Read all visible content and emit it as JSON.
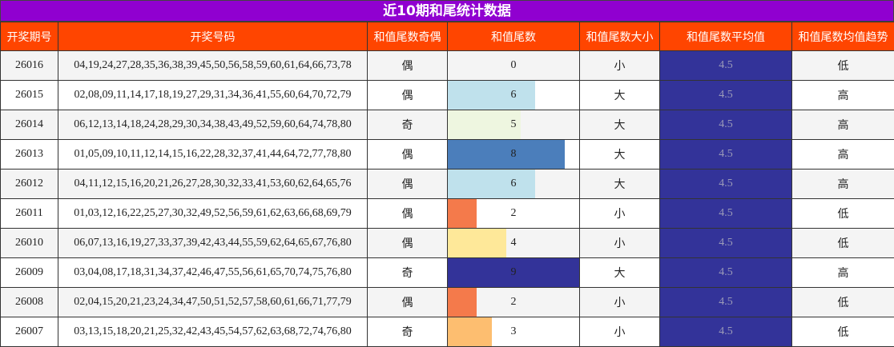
{
  "title": "近10期和尾统计数据",
  "table": {
    "headers": [
      "开奖期号",
      "开奖号码",
      "和值尾数奇偶",
      "和值尾数",
      "和值尾数大小",
      "和值尾数平均值",
      "和值尾数均值趋势"
    ],
    "rows": [
      [
        "26016",
        "04,19,24,27,28,35,36,38,39,45,50,56,58,59,60,61,64,66,73,78",
        "偶",
        0,
        "小",
        4.5,
        "低"
      ],
      [
        "26015",
        "02,08,09,11,14,17,18,19,27,29,31,34,36,41,55,60,64,70,72,79",
        "偶",
        6,
        "大",
        4.5,
        "高"
      ],
      [
        "26014",
        "06,12,13,14,18,24,28,29,30,34,38,43,49,52,59,60,64,74,78,80",
        "奇",
        5,
        "大",
        4.5,
        "高"
      ],
      [
        "26013",
        "01,05,09,10,11,12,14,15,16,22,28,32,37,41,44,64,72,77,78,80",
        "偶",
        8,
        "大",
        4.5,
        "高"
      ],
      [
        "26012",
        "04,11,12,15,16,20,21,26,27,28,30,32,33,41,53,60,62,64,65,76",
        "偶",
        6,
        "大",
        4.5,
        "高"
      ],
      [
        "26011",
        "01,03,12,16,22,25,27,30,32,49,52,56,59,61,62,63,66,68,69,79",
        "偶",
        2,
        "小",
        4.5,
        "低"
      ],
      [
        "26010",
        "06,07,13,16,19,27,33,37,39,42,43,44,55,59,62,64,65,67,76,80",
        "偶",
        4,
        "小",
        4.5,
        "低"
      ],
      [
        "26009",
        "03,04,08,17,18,31,34,37,42,46,47,55,56,61,65,70,74,75,76,80",
        "奇",
        9,
        "大",
        4.5,
        "高"
      ],
      [
        "26008",
        "02,04,15,20,21,23,24,34,47,50,51,52,57,58,60,61,66,71,77,79",
        "偶",
        2,
        "小",
        4.5,
        "低"
      ],
      [
        "26007",
        "03,13,15,18,20,21,25,32,42,43,45,54,57,62,63,68,72,74,76,80",
        "奇",
        3,
        "小",
        4.5,
        "低"
      ]
    ],
    "bar_colors": {
      "2": "#f47a4b",
      "3": "#fdbe70",
      "4": "#fee899",
      "5": "#eef6e0",
      "6": "#bfe1ec",
      "8": "#4b7ebb",
      "9": "#333399"
    },
    "avg_background": "#333399"
  }
}
